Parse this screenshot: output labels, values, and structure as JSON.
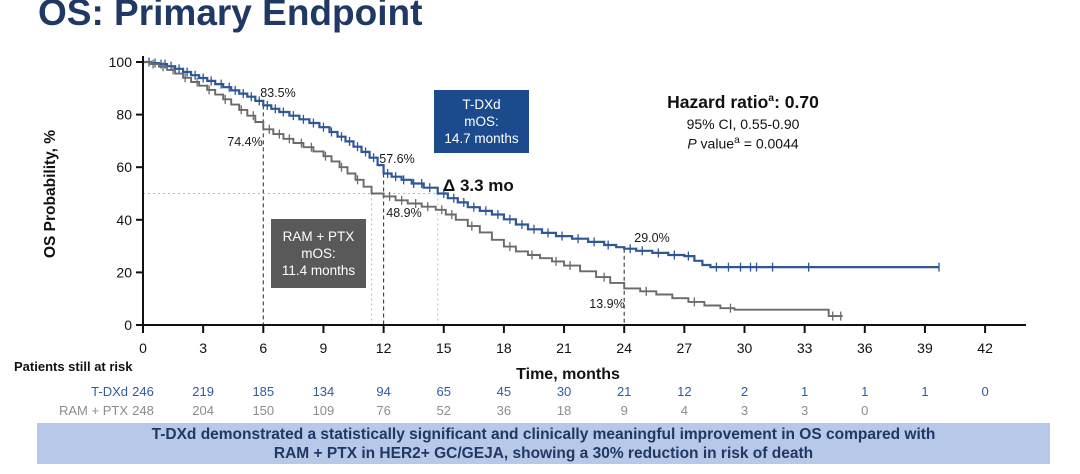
{
  "slide": {
    "title": "OS: Primary Endpoint"
  },
  "stats": {
    "hr_prefix": "Hazard ratio",
    "hr_sup": "a",
    "hr_value": ": 0.70",
    "ci": "95% CI, 0.55-0.90",
    "p_italic": "P",
    "p_mid": " value",
    "p_sup": "a",
    "p_value": " = 0.0044"
  },
  "boxes": {
    "tdxd_label": "T-DXd\nmOS:\n14.7 months",
    "tdxd_bg": "#1c4b8d",
    "ram_label": "RAM + PTX\nmOS:\n11.4 months",
    "ram_bg": "#595959"
  },
  "delta_label": "Δ 3.3 mo",
  "banner": {
    "line1": "T-DXd demonstrated a statistically significant and clinically meaningful improvement in OS compared with",
    "line2": "RAM + PTX in HER2+ GC/GEJA, showing a 30% reduction in risk of death",
    "bg": "#b7c8e8",
    "text_color": "#1f3864"
  },
  "chart_data": {
    "type": "line",
    "subtype": "kaplan-meier-step",
    "xlabel": "Time, months",
    "ylabel": "OS Probability, %",
    "xlim": [
      0,
      44
    ],
    "ylim": [
      0,
      100
    ],
    "xticks": [
      0,
      3,
      6,
      9,
      12,
      15,
      18,
      21,
      24,
      27,
      30,
      33,
      36,
      39,
      42
    ],
    "yticks": [
      0,
      20,
      40,
      60,
      80,
      100
    ],
    "grid": false,
    "landmark_lines": [
      {
        "month": 6
      },
      {
        "month": 12
      },
      {
        "month": 24
      }
    ],
    "median_refs": {
      "pct": 50,
      "months": [
        11.4,
        14.7
      ]
    },
    "rate_labels": [
      {
        "text": "83.5%",
        "month": 6,
        "pct": 83.5,
        "series": "T-DXd"
      },
      {
        "text": "74.4%",
        "month": 6,
        "pct": 74.4,
        "series": "RAM + PTX"
      },
      {
        "text": "57.6%",
        "month": 12,
        "pct": 57.6,
        "series": "T-DXd"
      },
      {
        "text": "48.9%",
        "month": 12,
        "pct": 48.9,
        "series": "RAM + PTX"
      },
      {
        "text": "29.0%",
        "month": 24,
        "pct": 29.0,
        "series": "T-DXd"
      },
      {
        "text": "13.9%",
        "month": 24,
        "pct": 13.9,
        "series": "RAM + PTX"
      }
    ],
    "series": [
      {
        "name": "T-DXd",
        "color": "#2d5797",
        "median_months": 14.7,
        "steps": [
          [
            0,
            100
          ],
          [
            0.4,
            99.6
          ],
          [
            0.8,
            99.2
          ],
          [
            1.2,
            98.4
          ],
          [
            1.6,
            97.4
          ],
          [
            2,
            96.2
          ],
          [
            2.4,
            95
          ],
          [
            2.8,
            93.9
          ],
          [
            3.2,
            92.8
          ],
          [
            3.6,
            91.6
          ],
          [
            4,
            90.4
          ],
          [
            4.4,
            89.2
          ],
          [
            4.8,
            88
          ],
          [
            5.2,
            86.8
          ],
          [
            5.6,
            85.2
          ],
          [
            6,
            83.5
          ],
          [
            6.4,
            82.2
          ],
          [
            6.8,
            81
          ],
          [
            7.3,
            79.6
          ],
          [
            7.8,
            78.2
          ],
          [
            8.3,
            76.8
          ],
          [
            8.8,
            75.2
          ],
          [
            9.3,
            73.4
          ],
          [
            9.7,
            71.6
          ],
          [
            10.1,
            69.8
          ],
          [
            10.5,
            67.8
          ],
          [
            10.9,
            65.8
          ],
          [
            11.3,
            63.6
          ],
          [
            11.7,
            60.8
          ],
          [
            12,
            57.6
          ],
          [
            12.4,
            56.4
          ],
          [
            12.9,
            55.2
          ],
          [
            13.4,
            53.8
          ],
          [
            14,
            52.2
          ],
          [
            14.7,
            50
          ],
          [
            15.2,
            48.2
          ],
          [
            15.7,
            46.6
          ],
          [
            16.2,
            44.8
          ],
          [
            16.8,
            43.4
          ],
          [
            17.4,
            42
          ],
          [
            18,
            40.2
          ],
          [
            18.6,
            38.2
          ],
          [
            19.2,
            36.4
          ],
          [
            19.9,
            35
          ],
          [
            20.6,
            33.8
          ],
          [
            21.4,
            32.8
          ],
          [
            22.2,
            31.6
          ],
          [
            23,
            30.4
          ],
          [
            23.6,
            29.6
          ],
          [
            24,
            29
          ],
          [
            24.6,
            28.2
          ],
          [
            25.4,
            27.4
          ],
          [
            26.2,
            26.6
          ],
          [
            27,
            26.2
          ],
          [
            27.5,
            24.4
          ],
          [
            27.9,
            22.8
          ],
          [
            28.3,
            22
          ],
          [
            39.7,
            22
          ]
        ],
        "censor_months": [
          0.3,
          0.6,
          0.9,
          1.1,
          1.4,
          1.8,
          2.2,
          2.6,
          3,
          3.4,
          3.9,
          4.3,
          4.6,
          5,
          5.4,
          5.8,
          6.2,
          6.6,
          7,
          7.5,
          8,
          8.5,
          9,
          9.4,
          9.9,
          10.3,
          10.7,
          11.1,
          11.5,
          12.2,
          12.6,
          13,
          13.5,
          13.9,
          14.3,
          15,
          15.5,
          16,
          16.5,
          17.1,
          17.7,
          18.3,
          18.9,
          19.5,
          20.2,
          20.9,
          21.7,
          22.5,
          23.2,
          24.3,
          24.9,
          25.7,
          26.5,
          27.2,
          28.6,
          29.2,
          29.8,
          30.3,
          30.6,
          31.4,
          33.2,
          39.7
        ]
      },
      {
        "name": "RAM + PTX",
        "color": "#6a6a6a",
        "median_months": 11.4,
        "steps": [
          [
            0,
            100
          ],
          [
            0.4,
            99.2
          ],
          [
            0.8,
            98.2
          ],
          [
            1.2,
            97
          ],
          [
            1.6,
            95.6
          ],
          [
            2,
            94
          ],
          [
            2.4,
            92.4
          ],
          [
            2.8,
            91
          ],
          [
            3.2,
            89.4
          ],
          [
            3.6,
            87.6
          ],
          [
            4,
            85.8
          ],
          [
            4.4,
            83.8
          ],
          [
            4.8,
            81.8
          ],
          [
            5.2,
            79.6
          ],
          [
            5.6,
            77.2
          ],
          [
            6,
            74.4
          ],
          [
            6.5,
            72.6
          ],
          [
            7,
            70.8
          ],
          [
            7.5,
            69.2
          ],
          [
            8,
            67.6
          ],
          [
            8.5,
            66
          ],
          [
            9,
            64.2
          ],
          [
            9.4,
            62.2
          ],
          [
            9.8,
            60
          ],
          [
            10.2,
            57.6
          ],
          [
            10.6,
            55.2
          ],
          [
            11,
            52.6
          ],
          [
            11.4,
            50
          ],
          [
            12,
            48.9
          ],
          [
            12.6,
            47.4
          ],
          [
            13.2,
            46.2
          ],
          [
            13.9,
            45
          ],
          [
            14.6,
            43.8
          ],
          [
            15.1,
            42
          ],
          [
            15.6,
            40
          ],
          [
            16.2,
            37.6
          ],
          [
            16.8,
            35.2
          ],
          [
            17.4,
            32.4
          ],
          [
            18,
            29.8
          ],
          [
            18.6,
            28
          ],
          [
            19.2,
            26.6
          ],
          [
            19.8,
            25.4
          ],
          [
            20.4,
            24.2
          ],
          [
            21,
            22.6
          ],
          [
            21.8,
            20.4
          ],
          [
            22.6,
            18.2
          ],
          [
            23.3,
            16
          ],
          [
            24,
            13.9
          ],
          [
            24.8,
            12.8
          ],
          [
            25.6,
            11.6
          ],
          [
            26.4,
            10.2
          ],
          [
            27.2,
            8.8
          ],
          [
            28,
            7.4
          ],
          [
            28.8,
            6.4
          ],
          [
            29.5,
            5.8
          ],
          [
            33.8,
            5.8
          ],
          [
            34.2,
            3.4
          ],
          [
            34.9,
            3.4
          ]
        ],
        "censor_months": [
          0.5,
          1,
          1.5,
          2.1,
          2.7,
          3.3,
          4.1,
          4.9,
          5.5,
          6.3,
          6.8,
          7.3,
          7.9,
          8.4,
          9.1,
          9.9,
          10.7,
          12.3,
          12.9,
          13.6,
          14.2,
          14.9,
          15.4,
          16.4,
          18.3,
          19.4,
          20.6,
          21.3,
          23,
          25.1,
          27.5,
          29.3,
          34.4,
          34.8
        ]
      }
    ],
    "risk_table": {
      "label": "Patients still at risk",
      "months": [
        0,
        3,
        6,
        9,
        12,
        15,
        18,
        21,
        24,
        27,
        30,
        33,
        36,
        39,
        42
      ],
      "rows": [
        {
          "name": "T-DXd",
          "color": "#2e5ba5",
          "counts": [
            246,
            219,
            185,
            134,
            94,
            65,
            45,
            30,
            21,
            12,
            2,
            1,
            1,
            1,
            0
          ]
        },
        {
          "name": "RAM + PTX",
          "color": "#8c8c8c",
          "counts": [
            248,
            204,
            150,
            109,
            76,
            52,
            36,
            18,
            9,
            4,
            3,
            3,
            0
          ]
        }
      ]
    }
  }
}
